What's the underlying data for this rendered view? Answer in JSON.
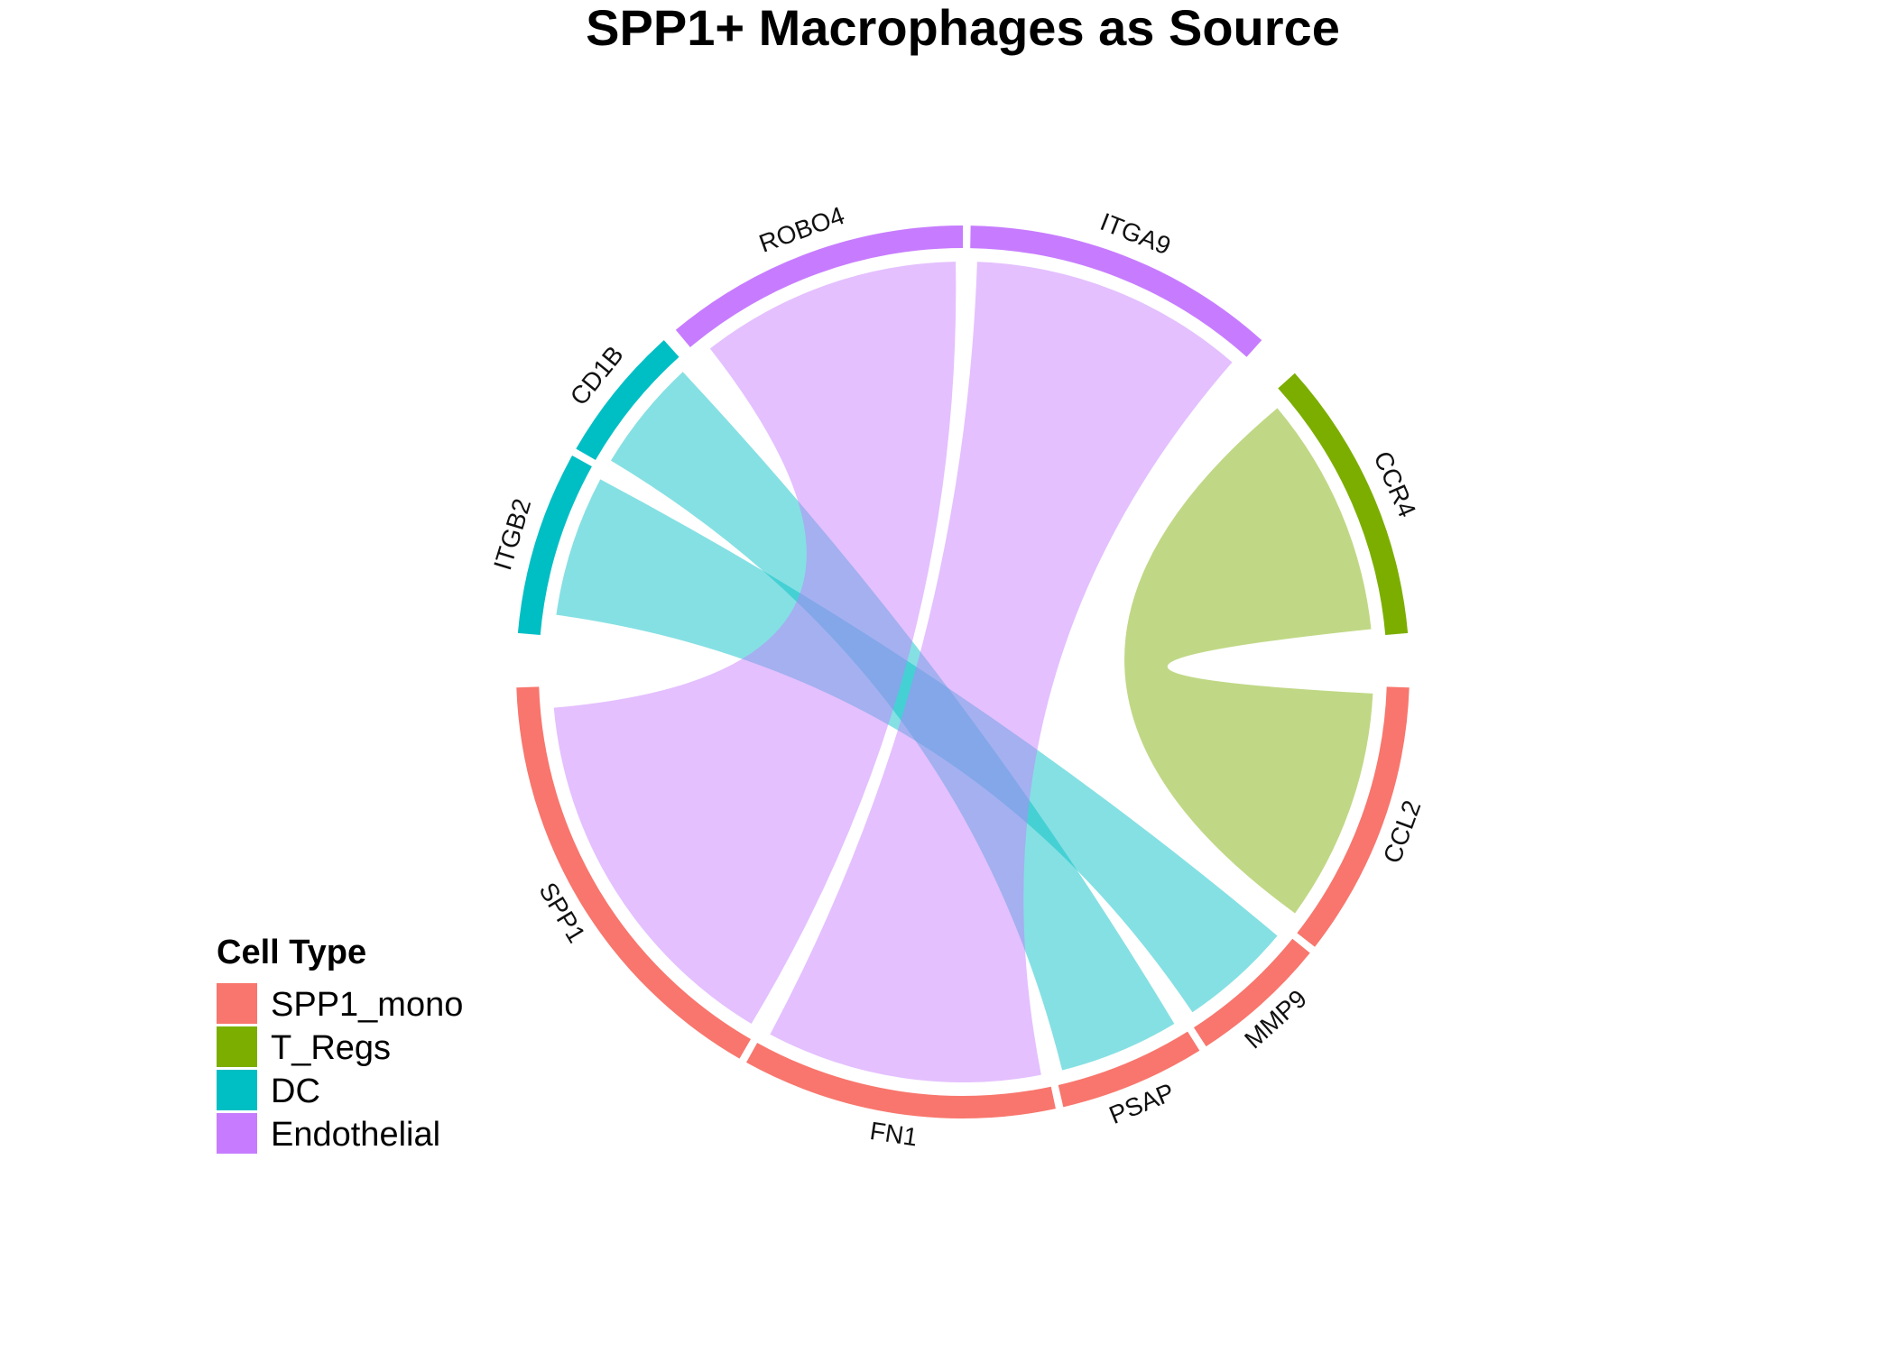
{
  "title": "SPP1+ Macrophages as Source",
  "legend": {
    "title": "Cell Type",
    "items": [
      {
        "label": "SPP1_mono",
        "color": "#F8766D"
      },
      {
        "label": "T_Regs",
        "color": "#7CAE00"
      },
      {
        "label": "DC",
        "color": "#00BFC4"
      },
      {
        "label": "Endothelial",
        "color": "#C77CFF"
      }
    ]
  },
  "chart_data": {
    "type": "chord",
    "title": "SPP1+ Macrophages as Source",
    "sectors": [
      {
        "name": "CCL2",
        "cell_type": "SPP1_mono"
      },
      {
        "name": "MMP9",
        "cell_type": "SPP1_mono"
      },
      {
        "name": "PSAP",
        "cell_type": "SPP1_mono"
      },
      {
        "name": "FN1",
        "cell_type": "SPP1_mono"
      },
      {
        "name": "SPP1",
        "cell_type": "SPP1_mono"
      },
      {
        "name": "ITGB2",
        "cell_type": "DC"
      },
      {
        "name": "CD1B",
        "cell_type": "DC"
      },
      {
        "name": "ROBO4",
        "cell_type": "Endothelial"
      },
      {
        "name": "ITGA9",
        "cell_type": "Endothelial"
      },
      {
        "name": "CCR4",
        "cell_type": "T_Regs"
      }
    ],
    "links": [
      {
        "source": "CCL2",
        "target": "CCR4",
        "target_cell_type": "T_Regs"
      },
      {
        "source": "MMP9",
        "target": "ITGB2",
        "target_cell_type": "DC"
      },
      {
        "source": "PSAP",
        "target": "CD1B",
        "target_cell_type": "DC"
      },
      {
        "source": "FN1",
        "target": "ITGA9",
        "target_cell_type": "Endothelial"
      },
      {
        "source": "SPP1",
        "target": "ROBO4",
        "target_cell_type": "Endothelial"
      }
    ]
  }
}
